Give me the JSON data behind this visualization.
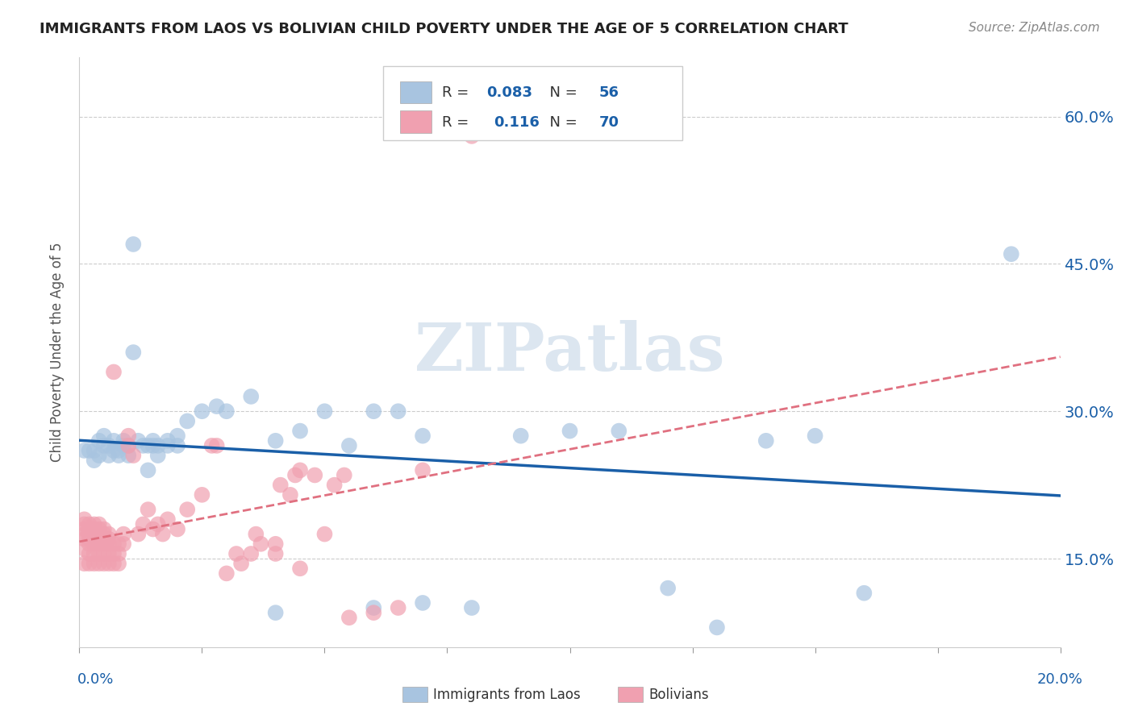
{
  "title": "IMMIGRANTS FROM LAOS VS BOLIVIAN CHILD POVERTY UNDER THE AGE OF 5 CORRELATION CHART",
  "source": "Source: ZipAtlas.com",
  "ylabel": "Child Poverty Under the Age of 5",
  "ytick_values": [
    0.15,
    0.3,
    0.45,
    0.6
  ],
  "xmin": 0.0,
  "xmax": 0.2,
  "ymin": 0.06,
  "ymax": 0.66,
  "watermark": "ZIPatlas",
  "blue_color": "#a8c4e0",
  "pink_color": "#f0a0b0",
  "blue_line_color": "#1a5fa8",
  "pink_line_color": "#e07080",
  "blue_scatter": [
    [
      0.001,
      0.26
    ],
    [
      0.002,
      0.26
    ],
    [
      0.003,
      0.26
    ],
    [
      0.003,
      0.25
    ],
    [
      0.004,
      0.27
    ],
    [
      0.004,
      0.255
    ],
    [
      0.005,
      0.275
    ],
    [
      0.005,
      0.265
    ],
    [
      0.006,
      0.265
    ],
    [
      0.006,
      0.255
    ],
    [
      0.007,
      0.26
    ],
    [
      0.007,
      0.27
    ],
    [
      0.008,
      0.26
    ],
    [
      0.008,
      0.255
    ],
    [
      0.009,
      0.265
    ],
    [
      0.009,
      0.27
    ],
    [
      0.01,
      0.255
    ],
    [
      0.01,
      0.265
    ],
    [
      0.011,
      0.36
    ],
    [
      0.011,
      0.47
    ],
    [
      0.012,
      0.27
    ],
    [
      0.013,
      0.265
    ],
    [
      0.014,
      0.265
    ],
    [
      0.014,
      0.24
    ],
    [
      0.015,
      0.27
    ],
    [
      0.015,
      0.265
    ],
    [
      0.016,
      0.265
    ],
    [
      0.016,
      0.255
    ],
    [
      0.018,
      0.265
    ],
    [
      0.018,
      0.27
    ],
    [
      0.02,
      0.275
    ],
    [
      0.02,
      0.265
    ],
    [
      0.022,
      0.29
    ],
    [
      0.025,
      0.3
    ],
    [
      0.028,
      0.305
    ],
    [
      0.03,
      0.3
    ],
    [
      0.035,
      0.315
    ],
    [
      0.04,
      0.27
    ],
    [
      0.045,
      0.28
    ],
    [
      0.05,
      0.3
    ],
    [
      0.055,
      0.265
    ],
    [
      0.06,
      0.3
    ],
    [
      0.065,
      0.3
    ],
    [
      0.07,
      0.275
    ],
    [
      0.09,
      0.275
    ],
    [
      0.1,
      0.28
    ],
    [
      0.11,
      0.28
    ],
    [
      0.14,
      0.27
    ],
    [
      0.15,
      0.275
    ],
    [
      0.16,
      0.115
    ],
    [
      0.19,
      0.46
    ],
    [
      0.06,
      0.1
    ],
    [
      0.07,
      0.105
    ],
    [
      0.08,
      0.1
    ],
    [
      0.04,
      0.095
    ],
    [
      0.12,
      0.12
    ],
    [
      0.13,
      0.08
    ]
  ],
  "pink_scatter": [
    [
      0.001,
      0.145
    ],
    [
      0.001,
      0.16
    ],
    [
      0.001,
      0.17
    ],
    [
      0.001,
      0.175
    ],
    [
      0.001,
      0.18
    ],
    [
      0.001,
      0.185
    ],
    [
      0.001,
      0.19
    ],
    [
      0.002,
      0.145
    ],
    [
      0.002,
      0.155
    ],
    [
      0.002,
      0.165
    ],
    [
      0.002,
      0.17
    ],
    [
      0.002,
      0.175
    ],
    [
      0.002,
      0.18
    ],
    [
      0.002,
      0.185
    ],
    [
      0.003,
      0.145
    ],
    [
      0.003,
      0.155
    ],
    [
      0.003,
      0.165
    ],
    [
      0.003,
      0.17
    ],
    [
      0.003,
      0.175
    ],
    [
      0.003,
      0.18
    ],
    [
      0.003,
      0.185
    ],
    [
      0.004,
      0.145
    ],
    [
      0.004,
      0.155
    ],
    [
      0.004,
      0.165
    ],
    [
      0.004,
      0.17
    ],
    [
      0.004,
      0.175
    ],
    [
      0.004,
      0.18
    ],
    [
      0.004,
      0.185
    ],
    [
      0.005,
      0.145
    ],
    [
      0.005,
      0.155
    ],
    [
      0.005,
      0.165
    ],
    [
      0.005,
      0.17
    ],
    [
      0.005,
      0.175
    ],
    [
      0.005,
      0.18
    ],
    [
      0.006,
      0.145
    ],
    [
      0.006,
      0.155
    ],
    [
      0.006,
      0.165
    ],
    [
      0.006,
      0.17
    ],
    [
      0.006,
      0.175
    ],
    [
      0.007,
      0.145
    ],
    [
      0.007,
      0.155
    ],
    [
      0.007,
      0.165
    ],
    [
      0.007,
      0.34
    ],
    [
      0.008,
      0.145
    ],
    [
      0.008,
      0.155
    ],
    [
      0.008,
      0.165
    ],
    [
      0.009,
      0.165
    ],
    [
      0.009,
      0.175
    ],
    [
      0.01,
      0.265
    ],
    [
      0.01,
      0.275
    ],
    [
      0.011,
      0.255
    ],
    [
      0.012,
      0.175
    ],
    [
      0.013,
      0.185
    ],
    [
      0.014,
      0.2
    ],
    [
      0.015,
      0.18
    ],
    [
      0.016,
      0.185
    ],
    [
      0.017,
      0.175
    ],
    [
      0.018,
      0.19
    ],
    [
      0.02,
      0.18
    ],
    [
      0.022,
      0.2
    ],
    [
      0.025,
      0.215
    ],
    [
      0.027,
      0.265
    ],
    [
      0.028,
      0.265
    ],
    [
      0.03,
      0.135
    ],
    [
      0.032,
      0.155
    ],
    [
      0.033,
      0.145
    ],
    [
      0.035,
      0.155
    ],
    [
      0.036,
      0.175
    ],
    [
      0.037,
      0.165
    ],
    [
      0.04,
      0.155
    ],
    [
      0.04,
      0.165
    ],
    [
      0.041,
      0.225
    ],
    [
      0.043,
      0.215
    ],
    [
      0.044,
      0.235
    ],
    [
      0.045,
      0.14
    ],
    [
      0.045,
      0.24
    ],
    [
      0.048,
      0.235
    ],
    [
      0.05,
      0.175
    ],
    [
      0.052,
      0.225
    ],
    [
      0.054,
      0.235
    ],
    [
      0.055,
      0.09
    ],
    [
      0.06,
      0.095
    ],
    [
      0.065,
      0.1
    ],
    [
      0.07,
      0.24
    ],
    [
      0.08,
      0.58
    ]
  ]
}
